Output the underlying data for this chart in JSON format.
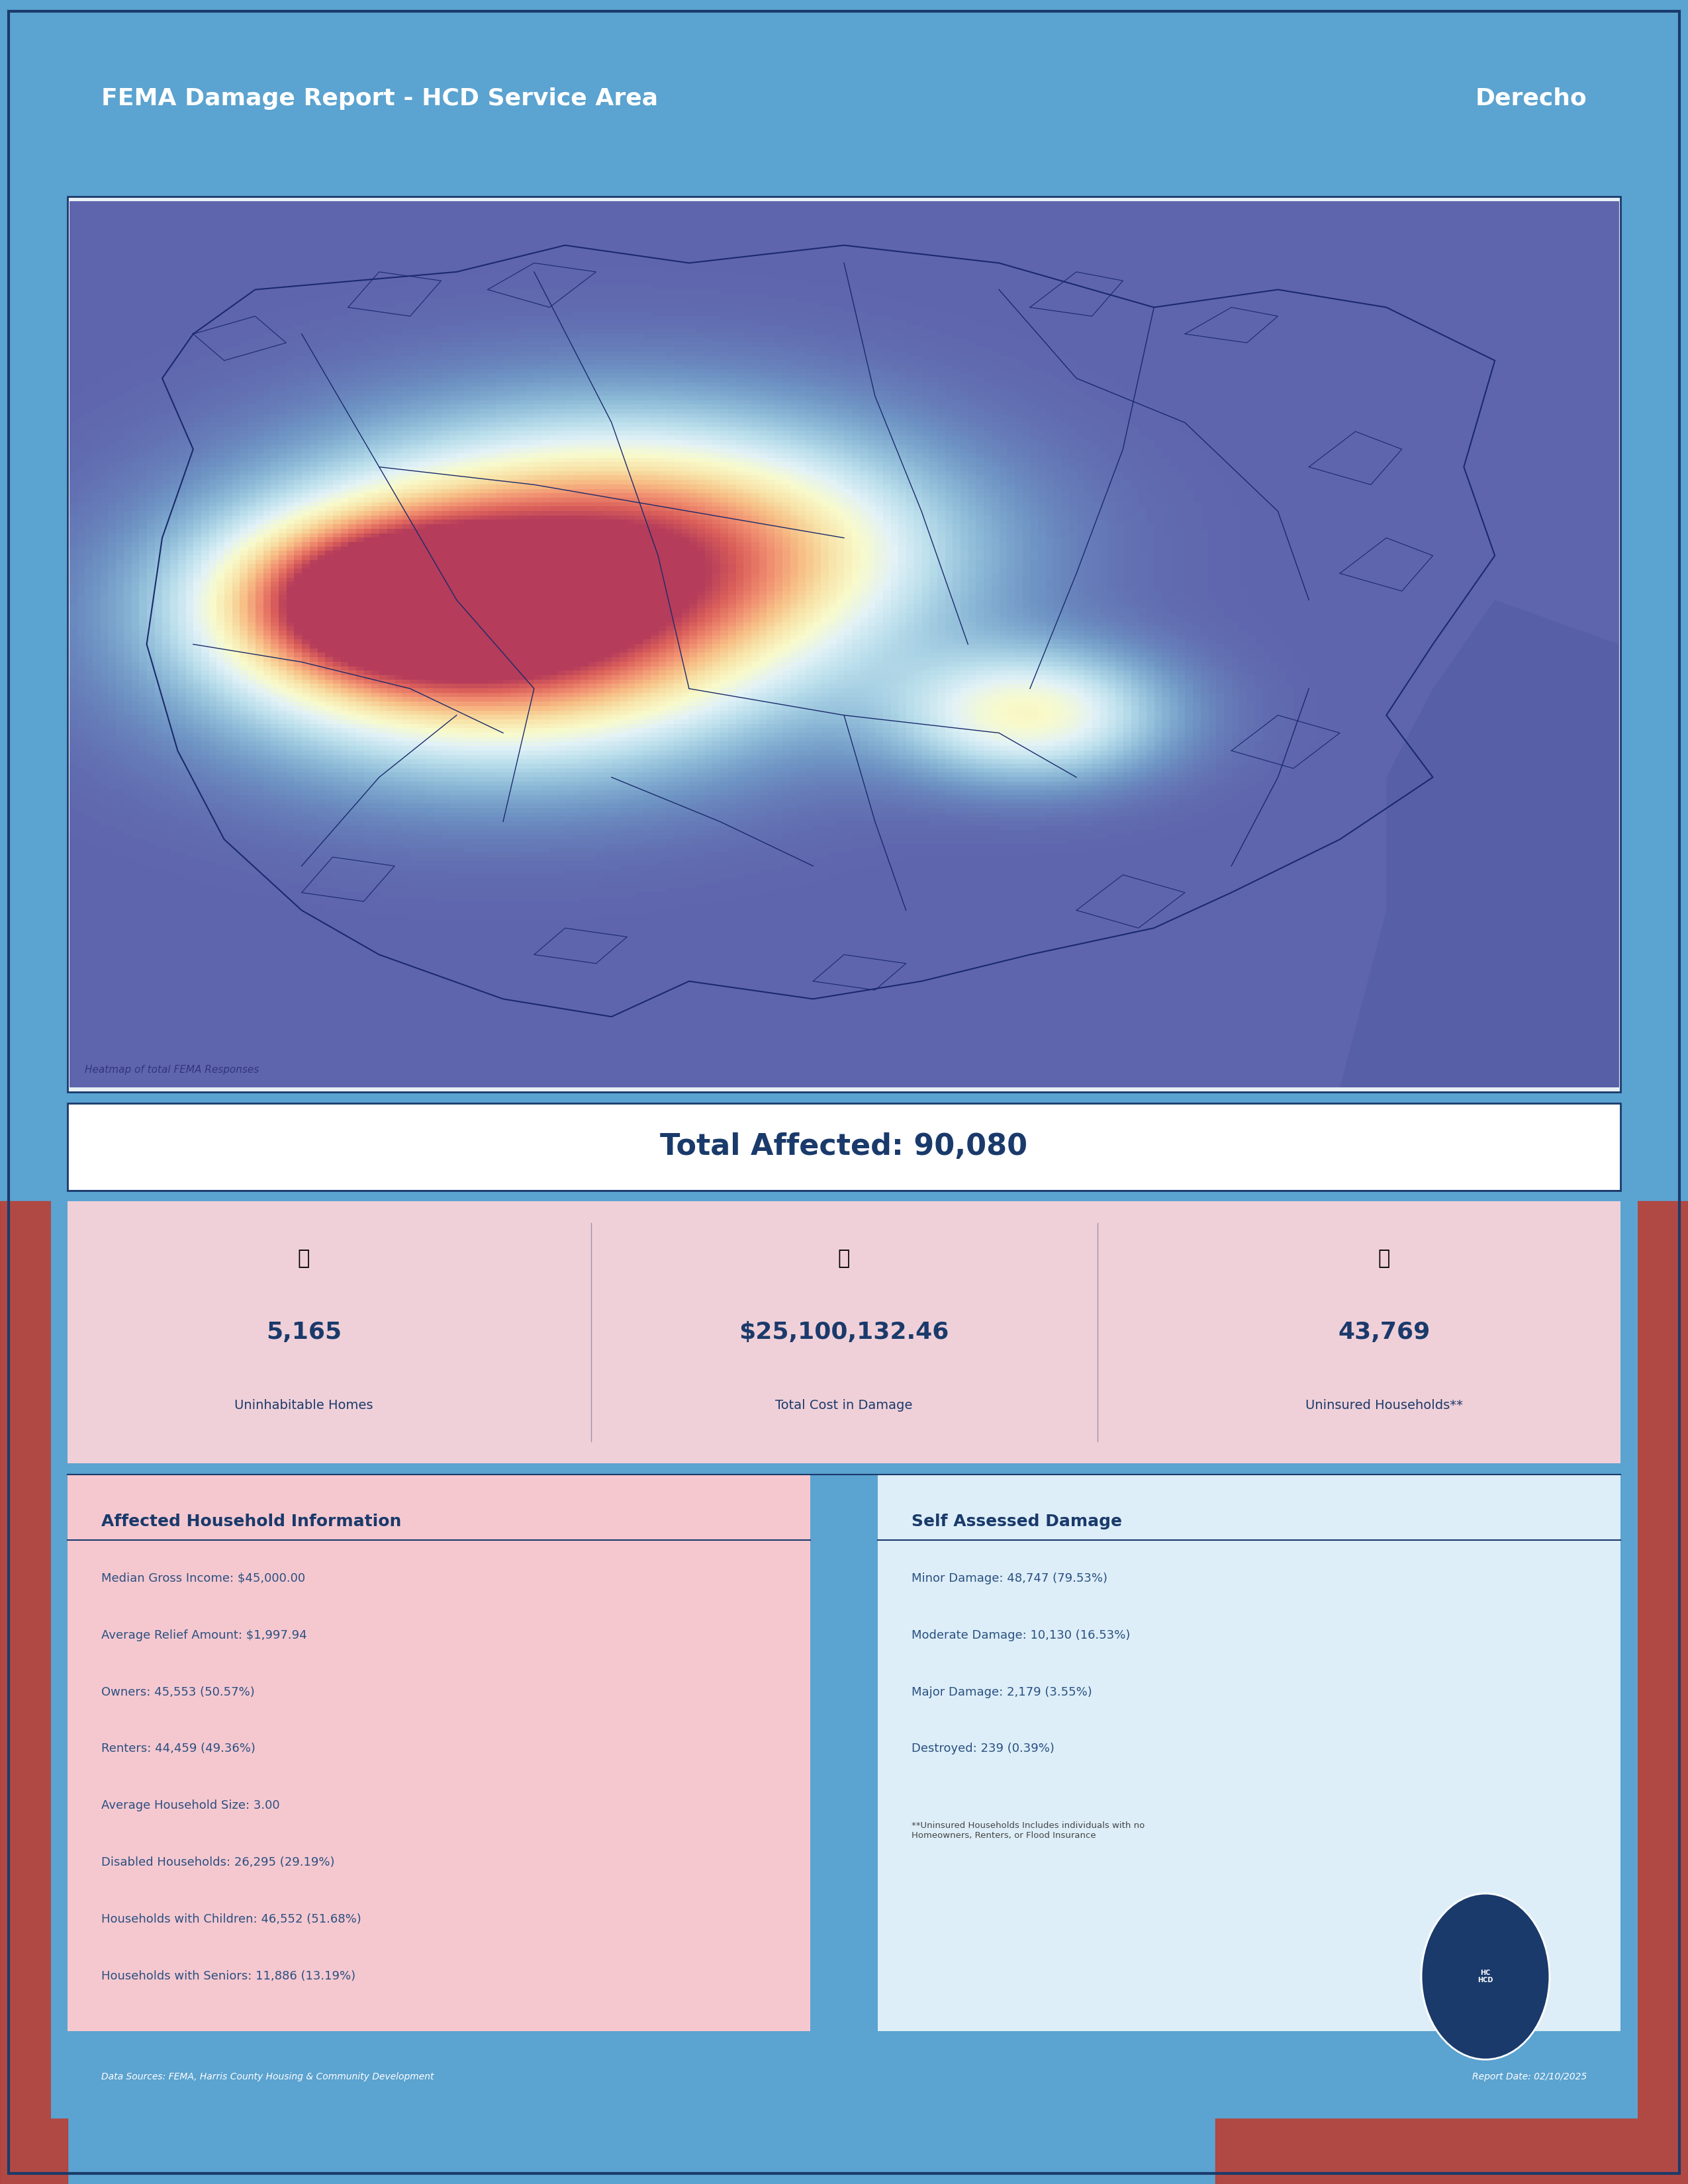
{
  "title_left": "FEMA Damage Report - HCD Service Area",
  "title_right": "Derecho",
  "total_affected_label": "Total Affected: 90,080",
  "stat1_value": "5,165",
  "stat1_label": "Uninhabitable Homes",
  "stat2_value": "$25,100,132.46",
  "stat2_label": "Total Cost in Damage",
  "stat3_value": "43,769",
  "stat3_label": "Uninsured Households**",
  "section1_title": "Affected Household Information",
  "section1_items": [
    "Median Gross Income: $45,000.00",
    "Average Relief Amount: $1,997.94",
    "Owners: 45,553 (50.57%)",
    "Renters: 44,459 (49.36%)",
    "Average Household Size: 3.00",
    "Disabled Households: 26,295 (29.19%)",
    "Households with Children: 46,552 (51.68%)",
    "Households with Seniors: 11,886 (13.19%)"
  ],
  "section2_title": "Self Assessed Damage",
  "section2_items": [
    "Minor Damage: 48,747 (79.53%)",
    "Moderate Damage: 10,130 (16.53%)",
    "Major Damage: 2,179 (3.55%)",
    "Destroyed: 239 (0.39%)"
  ],
  "footnote": "**Uninsured Households Includes individuals with no\nHomeowners, Renters, or Flood Insurance",
  "footer_left": "Data Sources: FEMA, Harris County Housing & Community Development",
  "footer_right": "Report Date: 02/10/2025",
  "map_caption": "Heatmap of total FEMA Responses",
  "bg_color_outer": "#5ba3d0",
  "bg_color_inner": "#e8f4fb",
  "header_bg": "#5ba3d0",
  "map_border_color": "#1a3a6b",
  "total_affected_bg": "#ffffff",
  "total_affected_text": "#1a3a6b",
  "stats_bg": "#f0d8dc",
  "stats_text_value": "#1a3a6b",
  "stats_text_label": "#1a3a6b",
  "section_bg_left": "#f5c0c8",
  "section_bg_right": "#e8f4fb",
  "section_title_color": "#1a3a6b",
  "section_text_color": "#2a5080",
  "footer_bg": "#5ba3d0",
  "footer_text_color": "#1a3a6b",
  "red_accent_color": "#c0392b",
  "divider_color": "#1a3a6b"
}
